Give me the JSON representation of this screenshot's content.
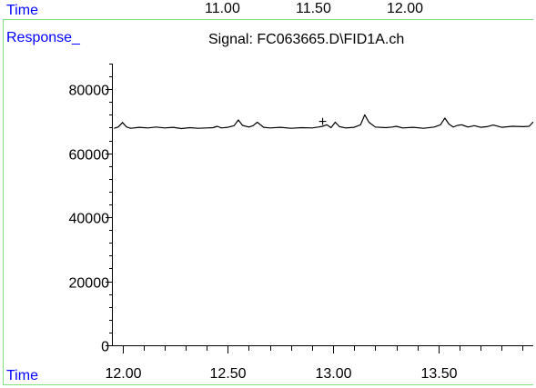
{
  "header": {
    "time_label": "Time",
    "top_time_ticks": [
      "11.00",
      "11.50",
      "12.00"
    ],
    "response_label": "Response_",
    "signal_title": "Signal: FC063665.D\\FID1A.ch"
  },
  "footer": {
    "time_label": "Time"
  },
  "colors": {
    "label_blue": "#0000ff",
    "frame_green": "#7fe07f",
    "trace": "#000000"
  },
  "chart_data": {
    "type": "line",
    "title": "Signal: FC063665.D\\FID1A.ch",
    "xlabel": "Time",
    "ylabel": "Response_",
    "xlim": [
      11.95,
      13.95
    ],
    "ylim": [
      0,
      88000
    ],
    "x_ticks": [
      12.0,
      12.5,
      13.0,
      13.5
    ],
    "x_tick_labels": [
      "12.00",
      "12.50",
      "13.00",
      "13.50"
    ],
    "x_minor_step": 0.1,
    "y_ticks": [
      0,
      20000,
      40000,
      60000,
      80000
    ],
    "y_tick_labels": [
      "0",
      "20000",
      "40000",
      "60000",
      "80000"
    ],
    "y_minor_step": 4000,
    "grid": false,
    "marker": {
      "symbol": "+",
      "x": 12.95,
      "y": 69500
    },
    "series": [
      {
        "x": [
          11.96,
          11.98,
          12.0,
          12.02,
          12.04,
          12.08,
          12.12,
          12.16,
          12.2,
          12.24,
          12.28,
          12.32,
          12.36,
          12.4,
          12.43,
          12.45,
          12.47,
          12.5,
          12.53,
          12.55,
          12.57,
          12.6,
          12.62,
          12.64,
          12.67,
          12.7,
          12.75,
          12.8,
          12.85,
          12.9,
          12.93,
          12.95,
          12.97,
          12.99,
          13.01,
          13.03,
          13.06,
          13.1,
          13.13,
          13.15,
          13.17,
          13.2,
          13.25,
          13.28,
          13.3,
          13.33,
          13.38,
          13.43,
          13.48,
          13.51,
          13.53,
          13.55,
          13.57,
          13.59,
          13.61,
          13.64,
          13.67,
          13.7,
          13.73,
          13.76,
          13.8,
          13.85,
          13.9,
          13.93,
          13.95
        ],
        "y": [
          67800,
          68200,
          69600,
          68200,
          67800,
          68100,
          67900,
          68200,
          67900,
          68100,
          67700,
          68000,
          67800,
          67900,
          68000,
          68400,
          67900,
          68100,
          68600,
          70400,
          68700,
          68200,
          68600,
          69700,
          68100,
          67900,
          68100,
          67800,
          68000,
          67900,
          68200,
          68400,
          68900,
          68000,
          69700,
          68300,
          67900,
          68100,
          68900,
          72000,
          69700,
          68200,
          68000,
          68200,
          68400,
          67900,
          68100,
          67800,
          68200,
          68900,
          71000,
          69100,
          68200,
          68700,
          68900,
          68200,
          68600,
          68100,
          68300,
          68800,
          68100,
          68400,
          68300,
          68400,
          69800
        ]
      }
    ]
  }
}
